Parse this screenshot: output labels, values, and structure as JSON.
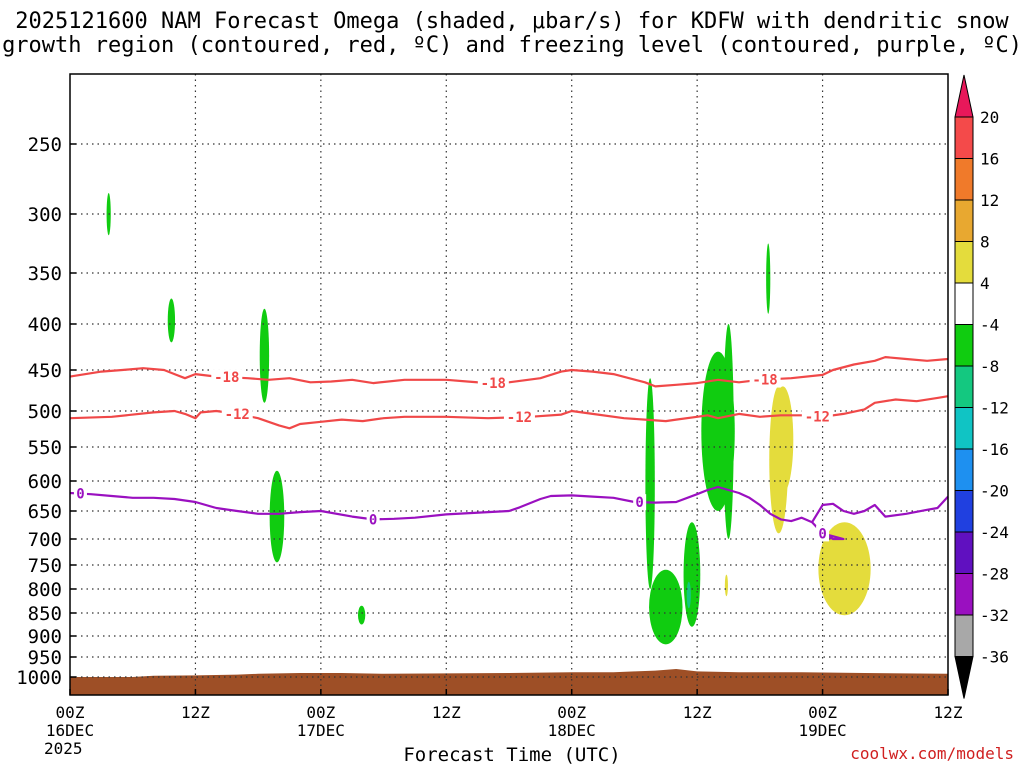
{
  "title_line1": "2025121600 NAM Forecast Omega (shaded, μbar/s) for KDFW with dendritic snow",
  "title_line2": "growth region (contoured, red, ºC) and freezing level (contoured, purple, ºC)",
  "credit": "coolwx.com/models",
  "chart_data": {
    "type": "time-height",
    "xlabel": "Forecast Time (UTC)",
    "x_start_year": "2025",
    "x_ticks": [
      {
        "hours": 0,
        "label": "00Z",
        "sub": "16DEC"
      },
      {
        "hours": 12,
        "label": "12Z",
        "sub": ""
      },
      {
        "hours": 24,
        "label": "00Z",
        "sub": "17DEC"
      },
      {
        "hours": 36,
        "label": "12Z",
        "sub": ""
      },
      {
        "hours": 48,
        "label": "00Z",
        "sub": "18DEC"
      },
      {
        "hours": 60,
        "label": "12Z",
        "sub": ""
      },
      {
        "hours": 72,
        "label": "00Z",
        "sub": "19DEC"
      },
      {
        "hours": 84,
        "label": "12Z",
        "sub": ""
      }
    ],
    "xlim": [
      0,
      84
    ],
    "y_ticks": [
      250,
      300,
      350,
      400,
      450,
      500,
      550,
      600,
      650,
      700,
      750,
      800,
      850,
      900,
      950,
      1000
    ],
    "ylim": [
      200,
      1050
    ],
    "colorbar": {
      "labels": [
        "20",
        "16",
        "12",
        "8",
        "4",
        "-4",
        "-8",
        "-12",
        "-16",
        "-20",
        "-24",
        "-28",
        "-32",
        "-36"
      ],
      "colors": [
        "#e8185a",
        "#f44a4a",
        "#f07a2a",
        "#e8a830",
        "#e4dc3c",
        "#ffffff",
        "#10cc10",
        "#14c880",
        "#10c4c4",
        "#1e90f0",
        "#2040e0",
        "#6010c0",
        "#9a10c0",
        "#a8a8a8",
        "#000000"
      ]
    },
    "contours": [
      {
        "name": "-18",
        "color": "#f04848",
        "labels_at": [
          15,
          40.5,
          66.5
        ],
        "points": [
          [
            0,
            458
          ],
          [
            3,
            452
          ],
          [
            5,
            450
          ],
          [
            7,
            448
          ],
          [
            9,
            450
          ],
          [
            10,
            455
          ],
          [
            11,
            460
          ],
          [
            12,
            455
          ],
          [
            14,
            458
          ],
          [
            17,
            460
          ],
          [
            19,
            462
          ],
          [
            21,
            460
          ],
          [
            23,
            465
          ],
          [
            25,
            464
          ],
          [
            27,
            462
          ],
          [
            29,
            466
          ],
          [
            32,
            462
          ],
          [
            36,
            462
          ],
          [
            38,
            464
          ],
          [
            40,
            466
          ],
          [
            42,
            465
          ],
          [
            45,
            460
          ],
          [
            47,
            452
          ],
          [
            48,
            450
          ],
          [
            50,
            452
          ],
          [
            52,
            455
          ],
          [
            55,
            465
          ],
          [
            56,
            470
          ],
          [
            58,
            468
          ],
          [
            60,
            466
          ],
          [
            62,
            462
          ],
          [
            64,
            465
          ],
          [
            66,
            462
          ],
          [
            69,
            460
          ],
          [
            72,
            456
          ],
          [
            73,
            450
          ],
          [
            75,
            444
          ],
          [
            77,
            440
          ],
          [
            78,
            436
          ],
          [
            80,
            438
          ],
          [
            82,
            440
          ],
          [
            84,
            438
          ]
        ]
      },
      {
        "name": "-12",
        "color": "#f04848",
        "labels_at": [
          16,
          43,
          71.5
        ],
        "points": [
          [
            0,
            510
          ],
          [
            4,
            508
          ],
          [
            8,
            502
          ],
          [
            10,
            500
          ],
          [
            11,
            504
          ],
          [
            12,
            510
          ],
          [
            12.5,
            502
          ],
          [
            14,
            500
          ],
          [
            16,
            504
          ],
          [
            18,
            510
          ],
          [
            20,
            520
          ],
          [
            21,
            524
          ],
          [
            22,
            518
          ],
          [
            24,
            515
          ],
          [
            26,
            512
          ],
          [
            28,
            514
          ],
          [
            30,
            510
          ],
          [
            32,
            508
          ],
          [
            36,
            508
          ],
          [
            40,
            510
          ],
          [
            44,
            508
          ],
          [
            47,
            505
          ],
          [
            48,
            500
          ],
          [
            50,
            504
          ],
          [
            53,
            510
          ],
          [
            55,
            512
          ],
          [
            57,
            514
          ],
          [
            58,
            512
          ],
          [
            60,
            508
          ],
          [
            61,
            506
          ],
          [
            62,
            510
          ],
          [
            64,
            504
          ],
          [
            66,
            508
          ],
          [
            68,
            506
          ],
          [
            70,
            506
          ],
          [
            72,
            508
          ],
          [
            74,
            504
          ],
          [
            76,
            498
          ],
          [
            77,
            490
          ],
          [
            79,
            486
          ],
          [
            81,
            488
          ],
          [
            83,
            484
          ],
          [
            84,
            482
          ]
        ]
      },
      {
        "name": "0",
        "color": "#9a10c0",
        "labels_at": [
          1,
          29,
          54.5,
          72
        ],
        "points": [
          [
            0,
            620
          ],
          [
            2,
            622
          ],
          [
            4,
            625
          ],
          [
            6,
            628
          ],
          [
            8,
            628
          ],
          [
            10,
            630
          ],
          [
            12,
            635
          ],
          [
            14,
            645
          ],
          [
            16,
            650
          ],
          [
            18,
            655
          ],
          [
            20,
            655
          ],
          [
            22,
            652
          ],
          [
            24,
            650
          ],
          [
            27,
            660
          ],
          [
            29,
            665
          ],
          [
            31,
            664
          ],
          [
            33,
            662
          ],
          [
            36,
            656
          ],
          [
            40,
            652
          ],
          [
            42,
            650
          ],
          [
            43,
            644
          ],
          [
            45,
            630
          ],
          [
            46,
            625
          ],
          [
            48,
            624
          ],
          [
            50,
            626
          ],
          [
            52,
            628
          ],
          [
            54,
            635
          ],
          [
            56,
            636
          ],
          [
            58,
            635
          ],
          [
            60,
            622
          ],
          [
            61,
            615
          ],
          [
            62,
            610
          ],
          [
            63,
            615
          ],
          [
            64,
            620
          ],
          [
            65,
            628
          ],
          [
            66,
            640
          ],
          [
            67,
            655
          ],
          [
            68,
            665
          ],
          [
            69,
            668
          ],
          [
            70,
            662
          ],
          [
            71,
            670
          ],
          [
            72,
            690
          ],
          [
            73,
            700
          ],
          [
            74,
            700
          ],
          [
            72,
            690
          ],
          [
            71,
            670
          ],
          [
            72,
            640
          ],
          [
            73,
            638
          ],
          [
            74,
            650
          ],
          [
            75,
            655
          ],
          [
            76,
            650
          ],
          [
            77,
            640
          ],
          [
            78,
            660
          ],
          [
            80,
            655
          ],
          [
            82,
            648
          ],
          [
            83,
            645
          ],
          [
            84,
            626
          ]
        ]
      }
    ],
    "shaded": [
      {
        "fill": "#10cc10",
        "center": [
          3.7,
          300
        ],
        "half_width_hours": 0.2,
        "top": 285,
        "bottom": 318
      },
      {
        "fill": "#10cc10",
        "center": [
          9.7,
          400
        ],
        "half_width_hours": 0.35,
        "top": 375,
        "bottom": 420
      },
      {
        "fill": "#10cc10",
        "center": [
          18.6,
          430
        ],
        "half_width_hours": 0.45,
        "top": 385,
        "bottom": 490
      },
      {
        "fill": "#10cc10",
        "center": [
          19.8,
          680
        ],
        "half_width_hours": 0.7,
        "top": 585,
        "bottom": 745
      },
      {
        "fill": "#10cc10",
        "center": [
          27.9,
          860
        ],
        "half_width_hours": 0.35,
        "top": 835,
        "bottom": 875
      },
      {
        "fill": "#10cc10",
        "center": [
          55.5,
          560
        ],
        "half_width_hours": 0.45,
        "top": 460,
        "bottom": 800
      },
      {
        "fill": "#10cc10",
        "center": [
          57,
          790
        ],
        "half_width_hours": 1.6,
        "top": 760,
        "bottom": 920
      },
      {
        "fill": "#10cc10",
        "center": [
          59.5,
          750
        ],
        "half_width_hours": 0.8,
        "top": 670,
        "bottom": 880
      },
      {
        "fill": "#10cc10",
        "center": [
          62,
          550
        ],
        "half_width_hours": 1.6,
        "top": 430,
        "bottom": 650
      },
      {
        "fill": "#10cc10",
        "center": [
          63,
          590
        ],
        "half_width_hours": 0.5,
        "top": 400,
        "bottom": 700
      },
      {
        "fill": "#10cc10",
        "center": [
          66.8,
          360
        ],
        "half_width_hours": 0.2,
        "top": 325,
        "bottom": 390
      },
      {
        "fill": "#14c880",
        "center": [
          59.2,
          810
        ],
        "half_width_hours": 0.2,
        "top": 785,
        "bottom": 840
      },
      {
        "fill": "#e4dc3c",
        "center": [
          67.8,
          560
        ],
        "half_width_hours": 0.9,
        "top": 470,
        "bottom": 690
      },
      {
        "fill": "#e4dc3c",
        "center": [
          68.2,
          520
        ],
        "half_width_hours": 1.0,
        "top": 470,
        "bottom": 620
      },
      {
        "fill": "#e4dc3c",
        "center": [
          74.1,
          760
        ],
        "half_width_hours": 2.5,
        "top": 670,
        "bottom": 855
      },
      {
        "fill": "#e4dc3c",
        "center": [
          62.8,
          800
        ],
        "half_width_hours": 0.15,
        "top": 770,
        "bottom": 815
      }
    ],
    "terrain": {
      "fill": "#9e4f26",
      "points": [
        [
          0,
          1000
        ],
        [
          6,
          1000
        ],
        [
          8,
          997
        ],
        [
          12,
          996
        ],
        [
          16,
          994
        ],
        [
          18,
          992
        ],
        [
          22,
          990
        ],
        [
          26,
          990
        ],
        [
          30,
          992
        ],
        [
          36,
          991
        ],
        [
          42,
          990
        ],
        [
          48,
          988
        ],
        [
          52,
          988
        ],
        [
          54,
          986
        ],
        [
          56,
          984
        ],
        [
          58,
          980
        ],
        [
          60,
          986
        ],
        [
          64,
          988
        ],
        [
          70,
          988
        ],
        [
          76,
          990
        ],
        [
          84,
          992
        ]
      ]
    }
  }
}
